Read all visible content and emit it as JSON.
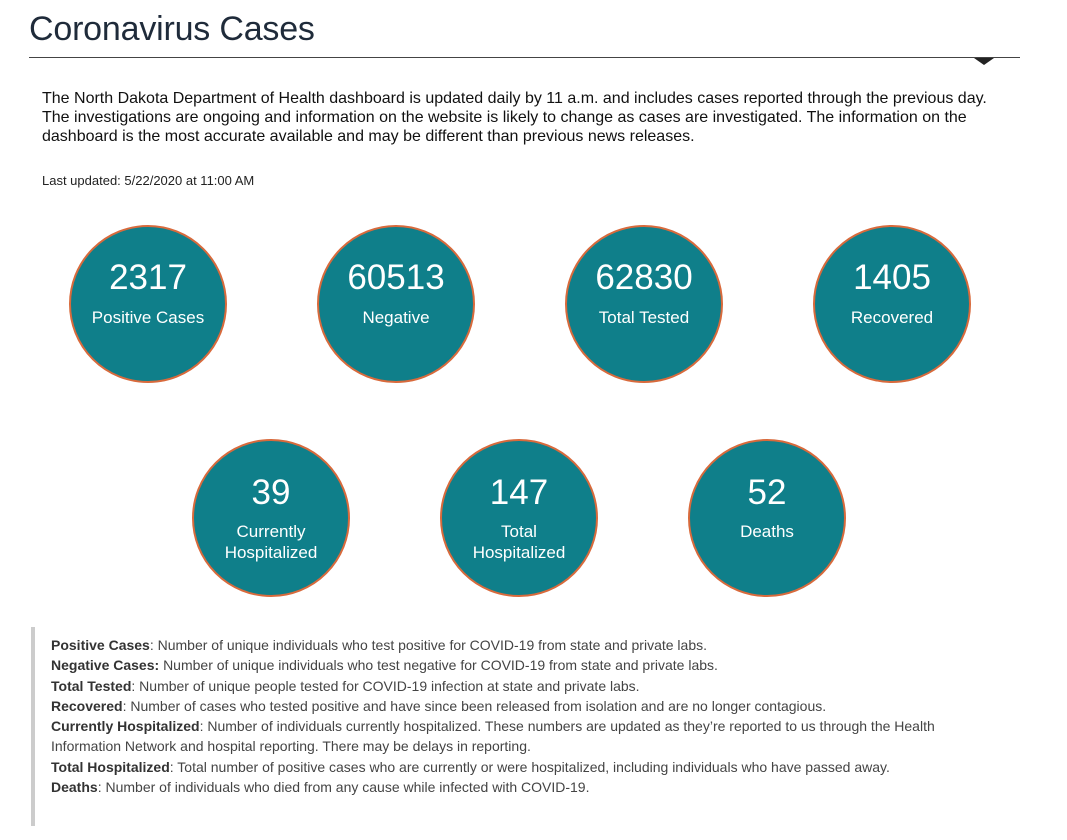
{
  "header": {
    "title": "Coronavirus Cases"
  },
  "intro": {
    "text": "The North Dakota Department of Health dashboard is updated daily by 11 a.m. and includes cases reported through the previous day. The investigations are ongoing and information on the website is likely to change as cases are investigated. The information on the dashboard is the most accurate available and may be different than previous news releases.",
    "last_updated": "Last updated: 5/22/2020 at 11:00 AM"
  },
  "colors": {
    "circle_fill": "#0f7f8a",
    "circle_border": "#d86a3c",
    "title_text": "#1f2b3a"
  },
  "stats": [
    {
      "value": "2317",
      "label": "Positive Cases"
    },
    {
      "value": "60513",
      "label": "Negative"
    },
    {
      "value": "62830",
      "label": "Total Tested"
    },
    {
      "value": "1405",
      "label": "Recovered"
    },
    {
      "value": "39",
      "label_line1": "Currently",
      "label_line2": "Hospitalized"
    },
    {
      "value": "147",
      "label_line1": "Total",
      "label_line2": "Hospitalized"
    },
    {
      "value": "52",
      "label": "Deaths"
    }
  ],
  "definitions": [
    {
      "term": "Positive Cases",
      "sep": ": ",
      "text": "Number of unique individuals who test positive for COVID-19 from state and private labs."
    },
    {
      "term": "Negative Cases:",
      "sep": " ",
      "text": "Number of unique individuals who test negative for COVID-19 from state and private labs."
    },
    {
      "term": "Total Tested",
      "sep": ": ",
      "text": "Number of unique people tested for COVID-19 infection at state and private labs."
    },
    {
      "term": "Recovered",
      "sep": ": ",
      "text": "Number of cases who tested positive and have since been released from isolation and are no longer contagious."
    },
    {
      "term": "Currently Hospitalized",
      "sep": ": ",
      "text": "Number of individuals currently hospitalized. These numbers are updated as they’re reported to us through the Health Information Network and hospital reporting. There may be delays in reporting."
    },
    {
      "term": "Total Hospitalized",
      "sep": ": ",
      "text": "Total number of positive cases who are currently or were hospitalized, including individuals who have passed away."
    },
    {
      "term": "Deaths",
      "sep": ": ",
      "text": "Number of individuals who died from any cause while infected with COVID-19."
    }
  ]
}
